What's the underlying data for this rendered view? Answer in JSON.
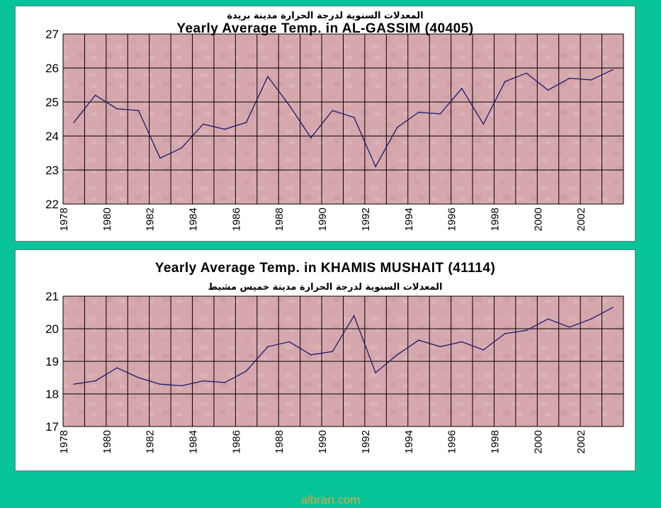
{
  "colors": {
    "background": "#06c39a",
    "plot_fill": "#d6a8ad",
    "grid": "#000000",
    "line": "#1a1a6e",
    "footer": "#d9a544"
  },
  "footer": "albrari.com",
  "chart_data": [
    {
      "type": "line",
      "title": "Yearly Average Temp. in AL-GASSIM (40405)",
      "subtitle": "المعدلات السنوية لدرجة الحرارة مدينة بريدة",
      "xlabel": "",
      "ylabel": "",
      "ylim": [
        22,
        27
      ],
      "yticks": [
        22,
        23,
        24,
        25,
        26,
        27
      ],
      "grid": true,
      "x": [
        1978,
        1979,
        1980,
        1981,
        1982,
        1983,
        1984,
        1985,
        1986,
        1987,
        1988,
        1989,
        1990,
        1991,
        1992,
        1993,
        1994,
        1995,
        1996,
        1997,
        1998,
        1999,
        2000,
        2001,
        2002,
        2003
      ],
      "x_tick_labels": [
        "1978",
        "1980",
        "1982",
        "1984",
        "1986",
        "1988",
        "1990",
        "1992",
        "1994",
        "1996",
        "1998",
        "2000",
        "2002"
      ],
      "series": [
        {
          "values": [
            24.4,
            25.2,
            24.8,
            24.75,
            23.35,
            23.65,
            24.35,
            24.2,
            24.4,
            25.75,
            24.9,
            23.95,
            24.75,
            24.55,
            23.1,
            24.25,
            24.7,
            24.65,
            25.4,
            24.35,
            25.6,
            25.85,
            25.35,
            25.7,
            25.65,
            25.95
          ]
        }
      ]
    },
    {
      "type": "line",
      "title": "Yearly Average Temp. in KHAMIS MUSHAIT (41114)",
      "subtitle": "المعدلات السنوية لدرجة الحرارة مدينة خميس مشيط",
      "xlabel": "",
      "ylabel": "",
      "ylim": [
        17,
        21
      ],
      "yticks": [
        17,
        18,
        19,
        20,
        21
      ],
      "grid": true,
      "x": [
        1978,
        1979,
        1980,
        1981,
        1982,
        1983,
        1984,
        1985,
        1986,
        1987,
        1988,
        1989,
        1990,
        1991,
        1992,
        1993,
        1994,
        1995,
        1996,
        1997,
        1998,
        1999,
        2000,
        2001,
        2002,
        2003
      ],
      "x_tick_labels": [
        "1978",
        "1980",
        "1982",
        "1984",
        "1986",
        "1988",
        "1990",
        "1992",
        "1994",
        "1996",
        "1998",
        "2000",
        "2002"
      ],
      "series": [
        {
          "values": [
            18.3,
            18.4,
            18.8,
            18.5,
            18.3,
            18.25,
            18.4,
            18.35,
            18.7,
            19.45,
            19.6,
            19.2,
            19.3,
            20.4,
            18.65,
            19.2,
            19.65,
            19.45,
            19.6,
            19.35,
            19.85,
            19.95,
            20.3,
            20.05,
            20.3,
            20.65
          ]
        }
      ]
    }
  ]
}
